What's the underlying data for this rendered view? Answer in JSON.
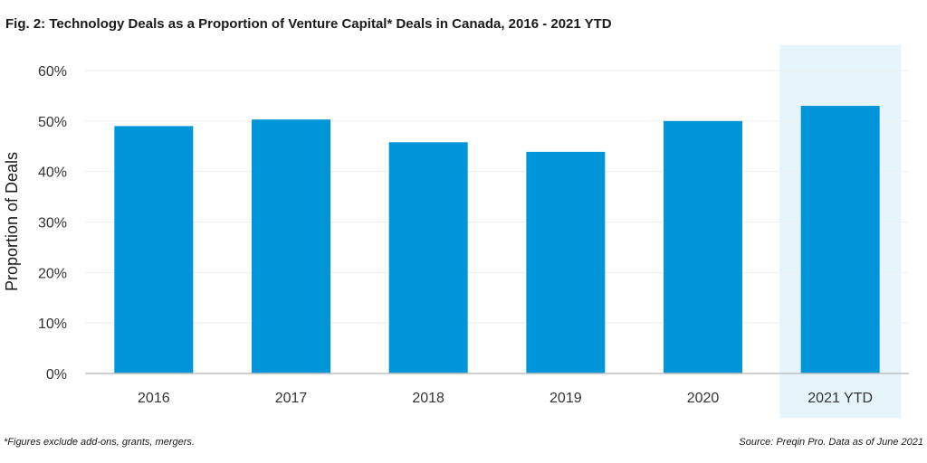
{
  "chart_data": {
    "type": "bar",
    "title": "Fig. 2:  Technology Deals as a Proportion of Venture Capital* Deals in Canada, 2016 - 2021 YTD",
    "xlabel": "",
    "ylabel": "Proportion of Deals",
    "categories": [
      "2016",
      "2017",
      "2018",
      "2019",
      "2020",
      "2021 YTD"
    ],
    "values": [
      49,
      50.3,
      45.8,
      43.9,
      50,
      53
    ],
    "ylim": [
      0,
      60
    ],
    "yticks": [
      0,
      10,
      20,
      30,
      40,
      50,
      60
    ],
    "ytick_labels": [
      "0%",
      "10%",
      "20%",
      "30%",
      "40%",
      "50%",
      "60%"
    ],
    "highlight_category": "2021 YTD",
    "grid": true,
    "bar_color": "#0095d9",
    "highlight_color": "#e6f4fb",
    "gridline_color": "#eeeeee",
    "axis_color": "#bfbfbf"
  },
  "footnotes": {
    "left": "*Figures exclude add-ons, grants, mergers.",
    "right": "Source: Preqin Pro. Data as of June 2021"
  }
}
